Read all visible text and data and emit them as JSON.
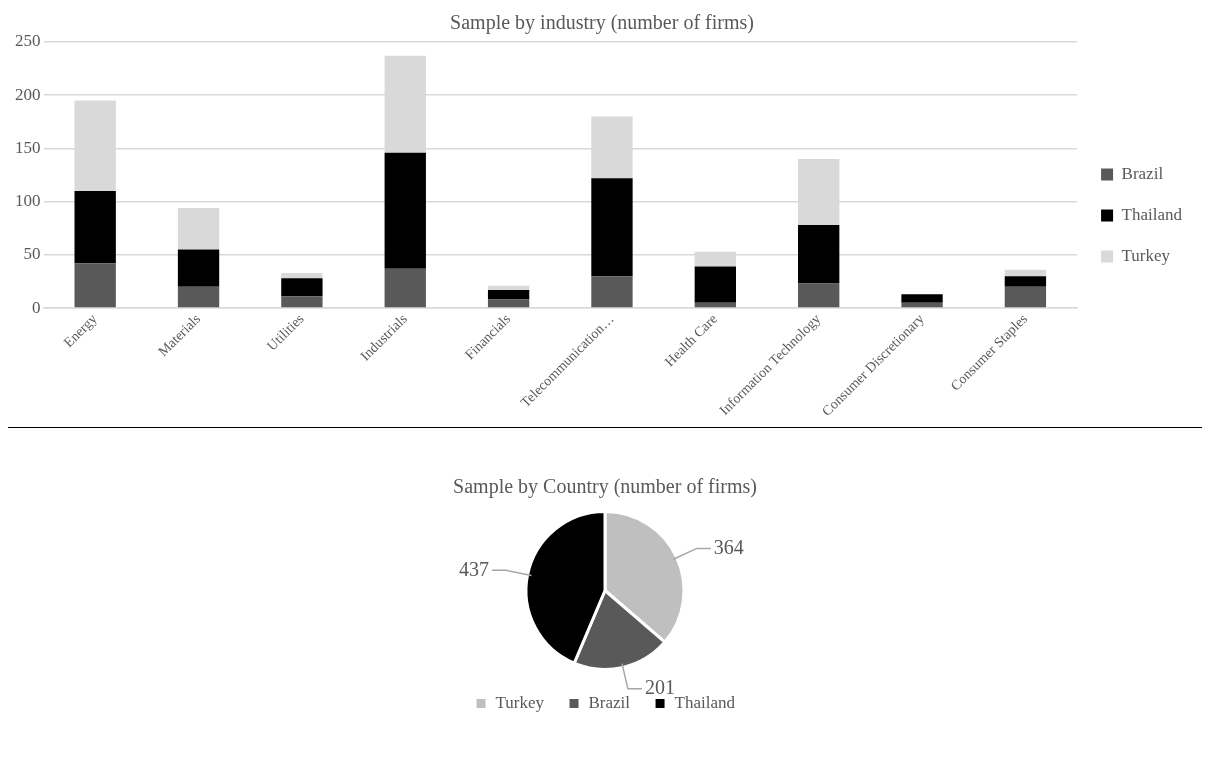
{
  "chart_data": [
    {
      "type": "bar",
      "title": "Sample by industry (number of firms)",
      "categories": [
        "Energy",
        "Materials",
        "Utilities",
        "Industrials",
        "Financials",
        "Telecommunication…",
        "Health Care",
        "Information Technology",
        "Consumer Discretionary",
        "Consumer Staples"
      ],
      "stacked": true,
      "series": [
        {
          "name": "Brazil",
          "color": "#595959",
          "values": [
            42,
            20,
            11,
            37,
            8,
            30,
            5,
            23,
            5,
            20
          ]
        },
        {
          "name": "Thailand",
          "color": "#000000",
          "values": [
            68,
            35,
            17,
            109,
            9,
            92,
            34,
            55,
            8,
            10
          ]
        },
        {
          "name": "Turkey",
          "color": "#d9d9d9",
          "values": [
            85,
            39,
            5,
            91,
            4,
            58,
            14,
            62,
            0,
            6
          ]
        }
      ],
      "ylim": [
        0,
        250
      ],
      "yticks": [
        0,
        50,
        100,
        150,
        200,
        250
      ],
      "grid": "y",
      "legend": "right"
    },
    {
      "type": "pie",
      "title": "Sample by Country (number of firms)",
      "categories": [
        "Turkey",
        "Brazil",
        "Thailand"
      ],
      "values": [
        364,
        201,
        437
      ],
      "colors": [
        "#bfbfbf",
        "#595959",
        "#000000"
      ],
      "data_labels": true,
      "legend": "bottom"
    }
  ]
}
